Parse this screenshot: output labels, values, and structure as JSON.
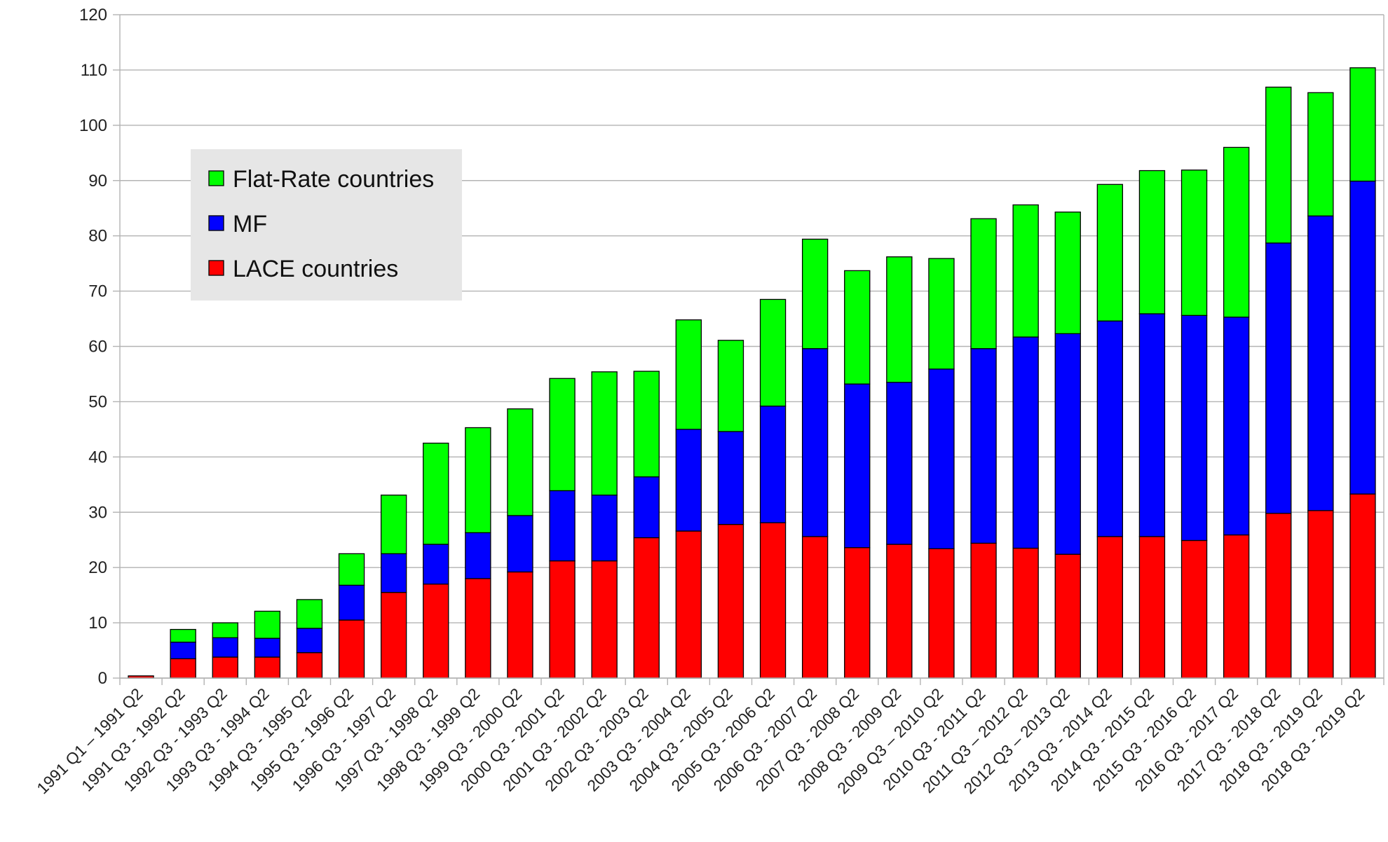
{
  "chart_data": {
    "type": "bar",
    "stacked": true,
    "categories": [
      "1991 Q1 – 1991 Q2",
      "1991 Q3 - 1992 Q2",
      "1992 Q3 - 1993 Q2",
      "1993 Q3 - 1994 Q2",
      "1994 Q3 - 1995 Q2",
      "1995 Q3 - 1996 Q2",
      "1996 Q3 - 1997 Q2",
      "1997 Q3 - 1998 Q2",
      "1998 Q3 - 1999 Q2",
      "1999 Q3 - 2000 Q2",
      "2000 Q3 - 2001 Q2",
      "2001 Q3 - 2002 Q2",
      "2002 Q3 - 2003 Q2",
      "2003 Q3 - 2004 Q2",
      "2004 Q3 - 2005 Q2",
      "2005 Q3 - 2006 Q2",
      "2006 Q3 - 2007 Q2",
      "2007 Q3 - 2008 Q2",
      "2008 Q3 - 2009 Q2",
      "2009 Q3 – 2010 Q2",
      "2010 Q3 - 2011 Q2",
      "2011 Q3 – 2012 Q2",
      "2012 Q3 – 2013 Q2",
      "2013 Q3 - 2014 Q2",
      "2014 Q3 - 2015 Q2",
      "2015 Q3 - 2016 Q2",
      "2016 Q3 - 2017 Q2",
      "2017 Q3 - 2018 Q2",
      "2018 Q3 - 2019 Q2",
      "2018 Q3 - 2019 Q2"
    ],
    "series": [
      {
        "name": "LACE countries",
        "color": "#ff0000",
        "values": [
          0.4,
          3.5,
          3.8,
          3.8,
          4.6,
          10.5,
          15.5,
          17.0,
          18.0,
          19.2,
          21.2,
          21.2,
          25.4,
          26.6,
          27.8,
          28.1,
          25.6,
          23.6,
          24.2,
          23.4,
          24.4,
          23.5,
          22.4,
          25.6,
          25.6,
          24.9,
          25.9,
          29.8,
          30.3,
          33.3
        ]
      },
      {
        "name": "MF",
        "color": "#0000ff",
        "values": [
          0,
          3.0,
          3.5,
          3.4,
          4.4,
          6.3,
          7.0,
          7.2,
          8.3,
          10.2,
          12.7,
          11.9,
          11.0,
          18.4,
          16.8,
          21.1,
          34.0,
          29.6,
          29.3,
          32.5,
          35.2,
          38.2,
          39.9,
          39.0,
          40.3,
          40.7,
          39.4,
          48.9,
          53.3,
          56.6
        ]
      },
      {
        "name": "Flat-Rate countries",
        "color": "#00ff00",
        "values": [
          0,
          2.3,
          2.7,
          4.9,
          5.2,
          5.7,
          10.6,
          18.3,
          19.0,
          19.3,
          20.3,
          22.3,
          19.1,
          19.8,
          16.5,
          19.3,
          19.8,
          20.5,
          22.7,
          20.0,
          23.5,
          23.9,
          22.0,
          24.7,
          25.9,
          26.3,
          30.7,
          28.2,
          22.3,
          20.5
        ]
      }
    ],
    "ylim": [
      0,
      120
    ],
    "yticks": [
      0,
      10,
      20,
      30,
      40,
      50,
      60,
      70,
      80,
      90,
      100,
      110,
      120
    ],
    "grid": true,
    "legend": {
      "placement": "upper-left",
      "items": [
        "Flat-Rate countries",
        "MF",
        "LACE countries"
      ]
    },
    "title": "",
    "xlabel": "",
    "ylabel": ""
  }
}
